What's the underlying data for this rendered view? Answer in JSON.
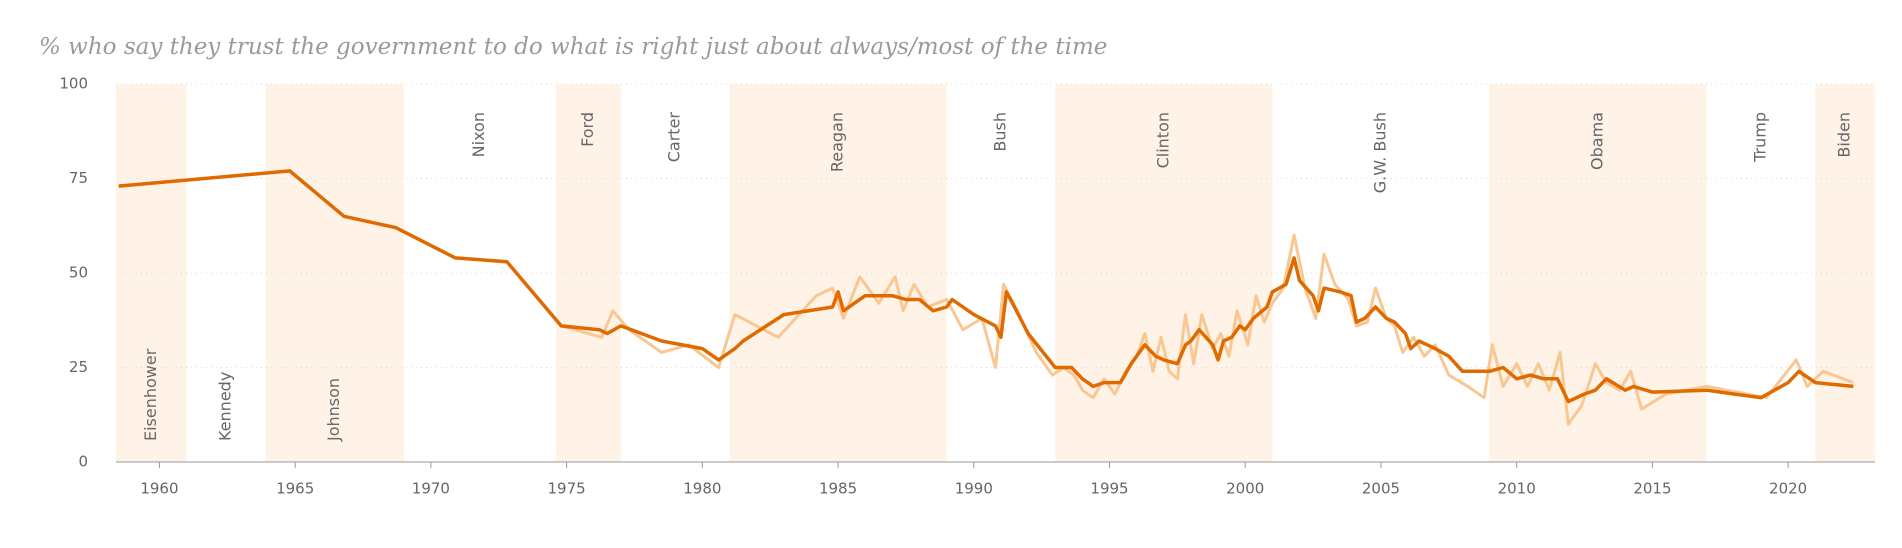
{
  "chart_data": {
    "type": "line",
    "title": "% who say they trust the government to do what is right just about always/most of the time",
    "xlim": [
      1958.4,
      2023.2
    ],
    "ylim": [
      0,
      100
    ],
    "xticks": [
      1960,
      1965,
      1970,
      1975,
      1980,
      1985,
      1990,
      1995,
      2000,
      2005,
      2010,
      2015,
      2020
    ],
    "yticks": [
      0,
      25,
      50,
      75,
      100
    ],
    "grid": true,
    "series": [
      {
        "color": "#f9c792",
        "x": [
          1958.5,
          1964.8,
          1966.8,
          1968.7,
          1970.9,
          1972.8,
          1974.8,
          1976.3,
          1976.7,
          1977.3,
          1978.5,
          1979.5,
          1980.6,
          1981.2,
          1982.8,
          1984.2,
          1984.8,
          1985.2,
          1985.8,
          1986.5,
          1987.1,
          1987.4,
          1987.8,
          1988.3,
          1989,
          1989.6,
          1990.3,
          1990.8,
          1991.1,
          1991.6,
          1992.3,
          1992.9,
          1993.3,
          1993.7,
          1994,
          1994.4,
          1994.8,
          1995.2,
          1995.6,
          1996,
          1996.3,
          1996.6,
          1996.9,
          1997.2,
          1997.5,
          1997.8,
          1998.1,
          1998.4,
          1998.8,
          1999.1,
          1999.4,
          1999.7,
          2000.1,
          2000.4,
          2000.7,
          2001,
          2001.4,
          2001.8,
          2002.2,
          2002.6,
          2002.9,
          2003.3,
          2003.8,
          2004.1,
          2004.5,
          2004.8,
          2005.2,
          2005.5,
          2005.8,
          2006.2,
          2006.6,
          2007,
          2007.5,
          2008.2,
          2008.8,
          2009.1,
          2009.5,
          2010,
          2010.4,
          2010.8,
          2011.2,
          2011.6,
          2011.9,
          2012.4,
          2012.9,
          2013.3,
          2013.8,
          2014.2,
          2014.6,
          2015.5,
          2017,
          2019.2,
          2020.3,
          2020.7,
          2021.3,
          2022.4
        ],
        "values": [
          73,
          77,
          65,
          62,
          54,
          53,
          36,
          33,
          40,
          35,
          29,
          31,
          25,
          39,
          33,
          44,
          46,
          38,
          49,
          42,
          49,
          40,
          47,
          41,
          43,
          35,
          38,
          25,
          47,
          40,
          29,
          23,
          25,
          23,
          19,
          17,
          22,
          18,
          24,
          28,
          34,
          24,
          33,
          24,
          22,
          39,
          26,
          39,
          30,
          34,
          28,
          40,
          31,
          44,
          37,
          42,
          46,
          60,
          46,
          38,
          55,
          47,
          43,
          36,
          37,
          46,
          38,
          36,
          29,
          33,
          28,
          31,
          23,
          20,
          17,
          31,
          20,
          26,
          20,
          26,
          19,
          29,
          10,
          15,
          26,
          21,
          19,
          24,
          14,
          18,
          20,
          17,
          27,
          20,
          24,
          21
        ]
      },
      {
        "color": "#df6b00",
        "x": [
          1958.5,
          1964.8,
          1966.8,
          1968.7,
          1970.9,
          1972.8,
          1974.8,
          1976.2,
          1976.5,
          1977,
          1978.5,
          1980,
          1980.6,
          1981.2,
          1981.5,
          1983,
          1984.8,
          1985,
          1985.2,
          1986,
          1987,
          1987.5,
          1988,
          1988.5,
          1989,
          1989.2,
          1990,
          1990.8,
          1991,
          1991.2,
          1991.5,
          1992,
          1993,
          1993.6,
          1994,
          1994.4,
          1994.8,
          1995,
          1995.4,
          1995.8,
          1996.3,
          1996.7,
          1997,
          1997.5,
          1997.8,
          1998,
          1998.3,
          1998.8,
          1999,
          1999.2,
          1999.5,
          1999.8,
          2000,
          2000.3,
          2000.8,
          2001,
          2001.5,
          2001.8,
          2002,
          2002.5,
          2002.7,
          2002.9,
          2003.5,
          2003.9,
          2004.1,
          2004.4,
          2004.8,
          2005.2,
          2005.5,
          2005.9,
          2006.1,
          2006.4,
          2007,
          2007.5,
          2008,
          2009,
          2009.5,
          2010,
          2010.5,
          2011,
          2011.5,
          2011.9,
          2012.5,
          2012.9,
          2013.3,
          2014,
          2014.3,
          2015,
          2017,
          2018,
          2019,
          2020,
          2020.4,
          2021,
          2022.4
        ],
        "values": [
          73,
          77,
          65,
          62,
          54,
          53,
          36,
          35,
          34,
          36,
          32,
          30,
          27,
          30,
          32,
          39,
          41,
          45,
          40,
          44,
          44,
          43,
          43,
          40,
          41,
          43,
          39,
          36,
          33,
          45,
          41,
          34,
          25,
          25,
          22,
          20,
          21,
          21,
          21,
          26,
          31,
          28,
          27,
          26,
          31,
          32,
          35,
          31,
          27,
          32,
          33,
          36,
          35,
          38,
          41,
          45,
          47,
          54,
          48,
          44,
          40,
          46,
          45,
          44,
          37,
          38,
          41,
          38,
          37,
          34,
          30,
          32,
          30,
          28,
          24,
          24,
          25,
          22,
          23,
          22,
          22,
          16,
          18,
          19,
          22,
          19,
          20,
          18.5,
          19,
          18,
          17,
          21,
          24,
          21,
          20
        ]
      }
    ],
    "presidents": [
      {
        "name": "Eisenhower",
        "color": "#e8174f",
        "start": 1958.4,
        "end": 1961
      },
      {
        "name": "Kennedy",
        "color": "#3aa7c9",
        "start": 1961,
        "end": 1963.9
      },
      {
        "name": "Johnson",
        "color": "#3aa7c9",
        "start": 1963.9,
        "end": 1969
      },
      {
        "name": "Nixon",
        "color": "#e8174f",
        "start": 1969,
        "end": 1974.6
      },
      {
        "name": "Ford",
        "color": "#e8174f",
        "start": 1974.6,
        "end": 1977
      },
      {
        "name": "Carter",
        "color": "#3aa7c9",
        "start": 1977,
        "end": 1981
      },
      {
        "name": "Reagan",
        "color": "#e8174f",
        "start": 1981,
        "end": 1989
      },
      {
        "name": "Bush",
        "color": "#e8174f",
        "start": 1989,
        "end": 1993
      },
      {
        "name": "Clinton",
        "color": "#3aa7c9",
        "start": 1993,
        "end": 2001
      },
      {
        "name": "G.W. Bush",
        "color": "#e8174f",
        "start": 2001,
        "end": 2009
      },
      {
        "name": "Obama",
        "color": "#3aa7c9",
        "start": 2009,
        "end": 2017
      },
      {
        "name": "Trump",
        "color": "#e8174f",
        "start": 2017,
        "end": 2021
      },
      {
        "name": "Biden",
        "color": "#3aa7c9",
        "start": 2021,
        "end": 2023.2
      }
    ]
  }
}
